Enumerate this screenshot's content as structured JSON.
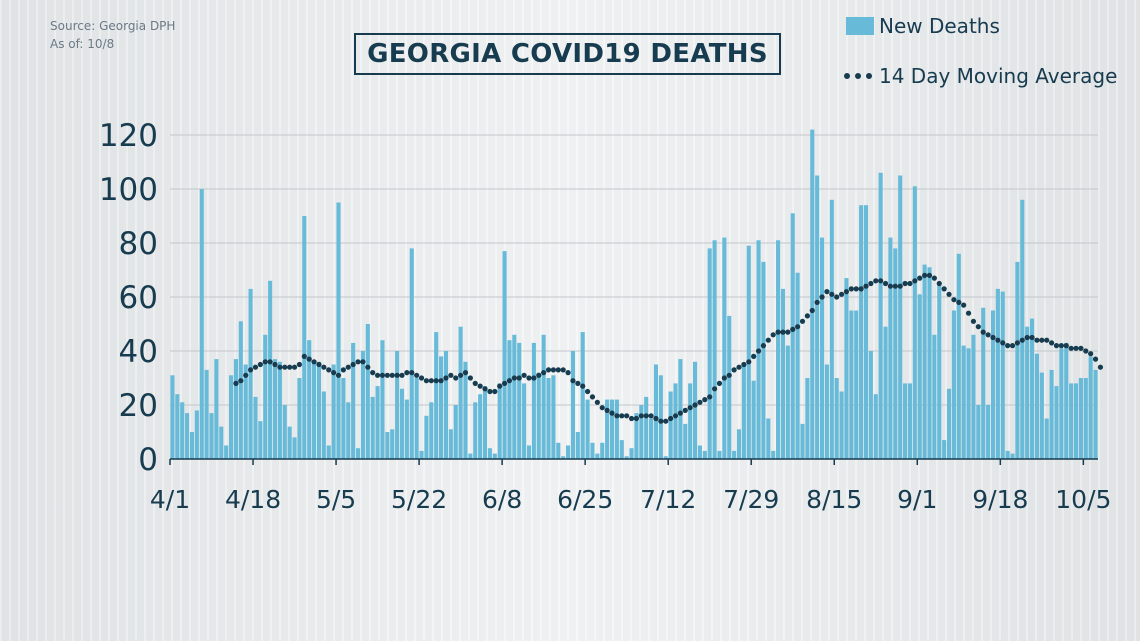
{
  "source": {
    "line1": "Source: Georgia DPH",
    "line2": "As of: 10/8"
  },
  "colors": {
    "bar": "#67bad8",
    "dots": "#173b4f",
    "text": "#173b4f",
    "grid": "#c3c7cb"
  },
  "chart_data": {
    "type": "bar",
    "title": "GEORGIA COVID19 DEATHS",
    "xlabel": "",
    "ylabel": "",
    "ylim": [
      0,
      120
    ],
    "yticks": [
      0,
      20,
      40,
      60,
      80,
      100,
      120
    ],
    "grid": true,
    "legend_position": "top-right",
    "x_start": "4/1",
    "xtick_labels": [
      "4/1",
      "4/18",
      "5/5",
      "5/22",
      "6/8",
      "6/25",
      "7/12",
      "7/29",
      "8/15",
      "9/1",
      "9/18",
      "10/5"
    ],
    "series": [
      {
        "name": "New Deaths",
        "kind": "bar",
        "values": [
          31,
          24,
          21,
          17,
          10,
          18,
          100,
          33,
          17,
          37,
          12,
          5,
          31,
          37,
          51,
          35,
          63,
          23,
          14,
          46,
          66,
          37,
          36,
          20,
          12,
          8,
          30,
          90,
          44,
          36,
          36,
          25,
          5,
          35,
          95,
          30,
          21,
          43,
          4,
          40,
          50,
          23,
          27,
          44,
          10,
          11,
          40,
          26,
          22,
          78,
          30,
          3,
          16,
          21,
          47,
          38,
          40,
          11,
          20,
          49,
          36,
          2,
          21,
          24,
          27,
          4,
          2,
          28,
          77,
          44,
          46,
          43,
          28,
          5,
          43,
          32,
          46,
          30,
          31,
          6,
          1,
          5,
          40,
          10,
          47,
          22,
          6,
          2,
          6,
          22,
          22,
          22,
          7,
          1,
          4,
          17,
          20,
          23,
          15,
          35,
          31,
          1,
          25,
          28,
          37,
          13,
          28,
          36,
          5,
          3,
          78,
          81,
          3,
          82,
          53,
          3,
          11,
          35,
          79,
          29,
          81,
          73,
          15,
          3,
          81,
          63,
          42,
          91,
          69,
          13,
          30,
          122,
          105,
          82,
          35,
          96,
          30,
          25,
          67,
          55,
          55,
          94,
          94,
          40,
          24,
          106,
          49,
          82,
          78,
          105,
          28,
          28,
          101,
          61,
          72,
          71,
          46,
          65,
          7,
          26,
          55,
          76,
          42,
          41,
          46,
          20,
          56,
          20,
          55,
          63,
          62,
          3,
          2,
          73,
          96,
          49,
          52,
          39,
          32,
          15,
          33,
          27,
          41,
          43,
          28,
          28,
          30,
          30,
          38,
          33
        ]
      },
      {
        "name": "14 Day Moving Average",
        "kind": "dots",
        "values": [
          null,
          null,
          null,
          null,
          null,
          null,
          null,
          null,
          null,
          null,
          null,
          null,
          null,
          28,
          29,
          31,
          33,
          34,
          35,
          36,
          36,
          35,
          34,
          34,
          34,
          34,
          35,
          38,
          37,
          36,
          35,
          34,
          33,
          32,
          31,
          33,
          34,
          35,
          36,
          36,
          34,
          32,
          31,
          31,
          31,
          31,
          31,
          31,
          32,
          32,
          31,
          30,
          29,
          29,
          29,
          29,
          30,
          31,
          30,
          31,
          32,
          30,
          28,
          27,
          26,
          25,
          25,
          27,
          28,
          29,
          30,
          30,
          31,
          30,
          30,
          31,
          32,
          33,
          33,
          33,
          33,
          32,
          29,
          28,
          27,
          25,
          23,
          21,
          19,
          18,
          17,
          16,
          16,
          16,
          15,
          15,
          16,
          16,
          16,
          15,
          14,
          14,
          15,
          16,
          17,
          18,
          19,
          20,
          21,
          22,
          23,
          26,
          28,
          30,
          31,
          33,
          34,
          35,
          36,
          38,
          40,
          42,
          44,
          46,
          47,
          47,
          47,
          48,
          49,
          51,
          53,
          55,
          58,
          60,
          62,
          61,
          60,
          61,
          62,
          63,
          63,
          63,
          64,
          65,
          66,
          66,
          65,
          64,
          64,
          64,
          65,
          65,
          66,
          67,
          68,
          68,
          67,
          65,
          63,
          61,
          59,
          58,
          57,
          54,
          51,
          49,
          47,
          46,
          45,
          44,
          43,
          42,
          42,
          43,
          44,
          45,
          45,
          44,
          44,
          44,
          43,
          42,
          42,
          42,
          41,
          41,
          41,
          40,
          39,
          37,
          34
        ]
      }
    ]
  }
}
